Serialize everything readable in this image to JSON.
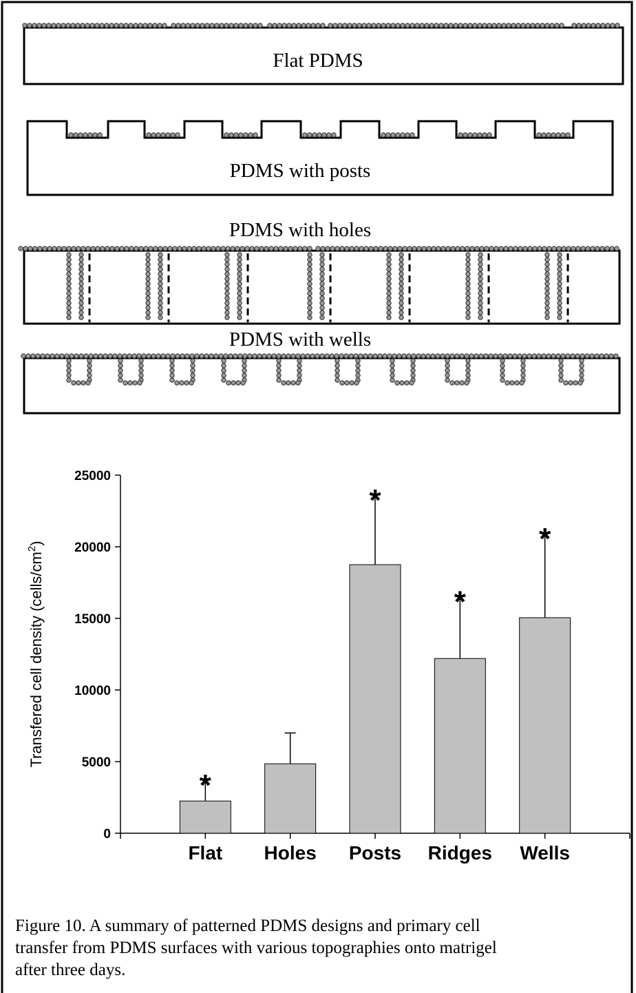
{
  "diagram": {
    "labels": [
      "Flat PDMS",
      "PDMS with posts",
      "PDMS with holes",
      "PDMS with wells"
    ]
  },
  "chart_data": {
    "type": "bar",
    "ylabel": "Transfered cell density (cells/cm",
    "ylabel_superscript": "2",
    "ylabel_end": ")",
    "categories": [
      "Flat",
      "Holes",
      "Posts",
      "Ridges",
      "Wells"
    ],
    "values": [
      2250,
      4850,
      18750,
      12200,
      15050
    ],
    "errors": [
      1550,
      2150,
      4950,
      4400,
      5950
    ],
    "significance": [
      "*",
      null,
      "*",
      "*",
      "*"
    ],
    "color": "#c0c0c0",
    "ylim": [
      0,
      25000
    ],
    "yticks": [
      0,
      5000,
      10000,
      15000,
      20000,
      25000
    ],
    "grid": false
  },
  "caption": [
    "Figure 10.  A summary of patterned PDMS designs and primary cell",
    "transfer from PDMS surfaces with various topographies onto matrigel",
    "after three days."
  ]
}
